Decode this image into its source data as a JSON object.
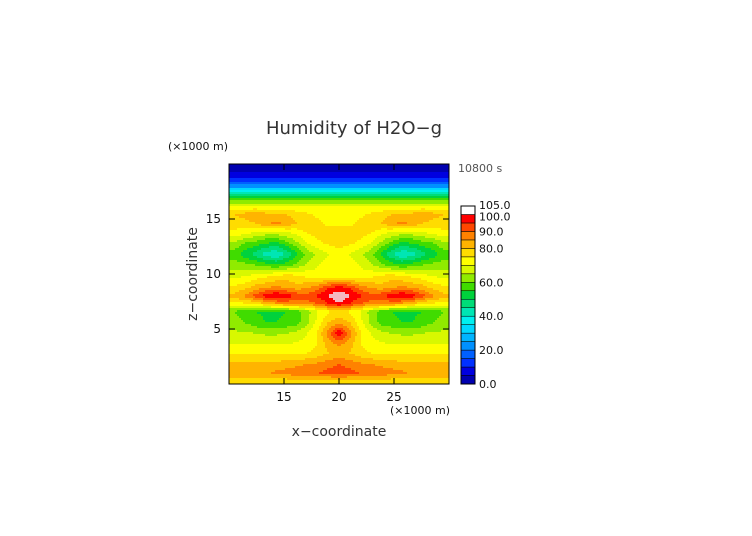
{
  "chart_data": {
    "type": "heatmap",
    "title": "Humidity of H2O−g",
    "time_label": "10800 s",
    "xlabel": "x−coordinate",
    "ylabel": "z−coordinate",
    "x_unit": "(×1000 m)",
    "y_unit": "(×1000 m)",
    "xlim": [
      10,
      30
    ],
    "ylim": [
      0,
      20
    ],
    "xticks": [
      15,
      20,
      25
    ],
    "yticks": [
      5,
      10,
      15
    ],
    "colorbar": {
      "labels": [
        "105.0",
        "100.0",
        "90.0",
        "80.0",
        "60.0",
        "40.0",
        "20.0",
        "0.0"
      ],
      "levels": [
        0,
        5,
        10,
        15,
        20,
        25,
        30,
        35,
        40,
        45,
        50,
        55,
        60,
        65,
        70,
        75,
        80,
        85,
        90,
        95,
        100,
        105
      ],
      "colors": [
        "#0000b0",
        "#0000e0",
        "#0030ff",
        "#0060ff",
        "#0090ff",
        "#00b4ff",
        "#00d8ff",
        "#00f0f0",
        "#00e6b4",
        "#00dc78",
        "#00d23c",
        "#40dc00",
        "#90eb00",
        "#d8f800",
        "#ffff00",
        "#ffdc00",
        "#ffb400",
        "#ff8200",
        "#ff4600",
        "#ff0000",
        "#f4b8c0"
      ]
    },
    "field": [
      {
        "z": 0.3,
        "values": [
          78,
          78,
          78,
          78,
          78,
          78,
          78,
          78,
          78,
          78,
          78,
          78,
          78,
          78,
          78,
          78,
          78,
          78,
          78,
          78,
          78
        ]
      },
      {
        "z": 1.0,
        "values": [
          83,
          83,
          83,
          84,
          86,
          87,
          88,
          89,
          90,
          92,
          94,
          92,
          90,
          89,
          88,
          87,
          86,
          84,
          83,
          83,
          83
        ]
      },
      {
        "z": 1.8,
        "values": [
          82,
          82,
          82,
          82,
          82,
          83,
          84,
          85,
          86,
          88,
          90,
          88,
          86,
          85,
          84,
          83,
          82,
          82,
          82,
          82,
          82
        ]
      },
      {
        "z": 2.8,
        "values": [
          74,
          74,
          74,
          74,
          74,
          74,
          74,
          75,
          77,
          80,
          82,
          80,
          77,
          75,
          74,
          74,
          74,
          74,
          74,
          74,
          74
        ]
      },
      {
        "z": 3.6,
        "values": [
          70,
          70,
          70,
          70,
          70,
          70,
          71,
          72,
          75,
          82,
          86,
          82,
          75,
          72,
          71,
          70,
          70,
          70,
          70,
          70,
          70
        ]
      },
      {
        "z": 4.6,
        "values": [
          66,
          66,
          65,
          64,
          64,
          65,
          67,
          70,
          76,
          88,
          100,
          88,
          76,
          70,
          67,
          65,
          64,
          64,
          65,
          66,
          66
        ]
      },
      {
        "z": 5.6,
        "values": [
          62,
          60,
          57,
          55,
          55,
          56,
          58,
          64,
          72,
          80,
          84,
          80,
          72,
          64,
          58,
          56,
          55,
          55,
          57,
          60,
          62
        ]
      },
      {
        "z": 6.6,
        "values": [
          60,
          57,
          55,
          54,
          54,
          55,
          58,
          63,
          70,
          74,
          76,
          74,
          70,
          63,
          58,
          55,
          54,
          54,
          55,
          57,
          60
        ]
      },
      {
        "z": 7.3,
        "values": [
          74,
          74,
          76,
          80,
          84,
          86,
          87,
          88,
          90,
          95,
          100,
          95,
          90,
          88,
          87,
          86,
          84,
          80,
          76,
          74,
          74
        ]
      },
      {
        "z": 8.0,
        "values": [
          82,
          86,
          92,
          98,
          101,
          98,
          94,
          92,
          96,
          101,
          104,
          101,
          96,
          92,
          94,
          98,
          101,
          98,
          92,
          86,
          82
        ]
      },
      {
        "z": 8.8,
        "values": [
          76,
          78,
          82,
          84,
          86,
          84,
          82,
          84,
          88,
          94,
          96,
          94,
          88,
          84,
          82,
          84,
          86,
          84,
          82,
          78,
          76
        ]
      },
      {
        "z": 9.8,
        "values": [
          68,
          70,
          72,
          74,
          76,
          78,
          76,
          74,
          72,
          72,
          72,
          72,
          72,
          74,
          76,
          78,
          76,
          74,
          72,
          70,
          68
        ]
      },
      {
        "z": 10.8,
        "values": [
          62,
          62,
          60,
          58,
          56,
          58,
          62,
          66,
          70,
          72,
          72,
          72,
          70,
          66,
          62,
          58,
          56,
          58,
          60,
          62,
          62
        ]
      },
      {
        "z": 11.8,
        "values": [
          58,
          52,
          48,
          42,
          40,
          46,
          54,
          62,
          66,
          70,
          72,
          70,
          66,
          62,
          54,
          46,
          40,
          42,
          48,
          52,
          58
        ]
      },
      {
        "z": 12.8,
        "values": [
          64,
          60,
          58,
          55,
          54,
          58,
          64,
          70,
          74,
          76,
          78,
          76,
          74,
          70,
          64,
          58,
          54,
          55,
          58,
          60,
          64
        ]
      },
      {
        "z": 13.8,
        "values": [
          74,
          72,
          70,
          68,
          68,
          70,
          72,
          76,
          77,
          77,
          77,
          77,
          77,
          76,
          72,
          70,
          68,
          68,
          70,
          72,
          74
        ]
      },
      {
        "z": 14.6,
        "values": [
          78,
          78,
          80,
          84,
          86,
          84,
          80,
          78,
          76,
          74,
          74,
          74,
          76,
          78,
          80,
          84,
          86,
          84,
          80,
          78,
          78
        ]
      },
      {
        "z": 15.4,
        "values": [
          80,
          82,
          84,
          82,
          80,
          80,
          78,
          76,
          74,
          72,
          72,
          72,
          74,
          76,
          78,
          80,
          80,
          82,
          84,
          82,
          80
        ]
      },
      {
        "z": 16.2,
        "values": [
          70,
          70,
          70,
          70,
          70,
          70,
          70,
          70,
          70,
          70,
          70,
          70,
          70,
          70,
          70,
          70,
          70,
          70,
          70,
          70,
          70
        ]
      },
      {
        "z": 16.9,
        "values": [
          55,
          55,
          55,
          55,
          55,
          55,
          55,
          55,
          55,
          55,
          55,
          55,
          55,
          55,
          55,
          55,
          55,
          55,
          55,
          55,
          55
        ]
      },
      {
        "z": 17.5,
        "values": [
          38,
          38,
          38,
          38,
          38,
          38,
          38,
          38,
          38,
          38,
          38,
          38,
          38,
          38,
          38,
          38,
          38,
          38,
          38,
          38,
          38
        ]
      },
      {
        "z": 18.0,
        "values": [
          22,
          22,
          22,
          22,
          22,
          22,
          22,
          22,
          22,
          22,
          22,
          22,
          22,
          22,
          22,
          22,
          22,
          22,
          22,
          22,
          22
        ]
      },
      {
        "z": 18.7,
        "values": [
          10,
          10,
          10,
          10,
          10,
          10,
          10,
          10,
          10,
          10,
          10,
          10,
          10,
          10,
          10,
          10,
          10,
          10,
          10,
          10,
          10
        ]
      },
      {
        "z": 19.5,
        "values": [
          3,
          3,
          3,
          3,
          3,
          3,
          3,
          3,
          3,
          3,
          3,
          3,
          3,
          3,
          3,
          3,
          3,
          3,
          3,
          3,
          3
        ]
      }
    ]
  }
}
